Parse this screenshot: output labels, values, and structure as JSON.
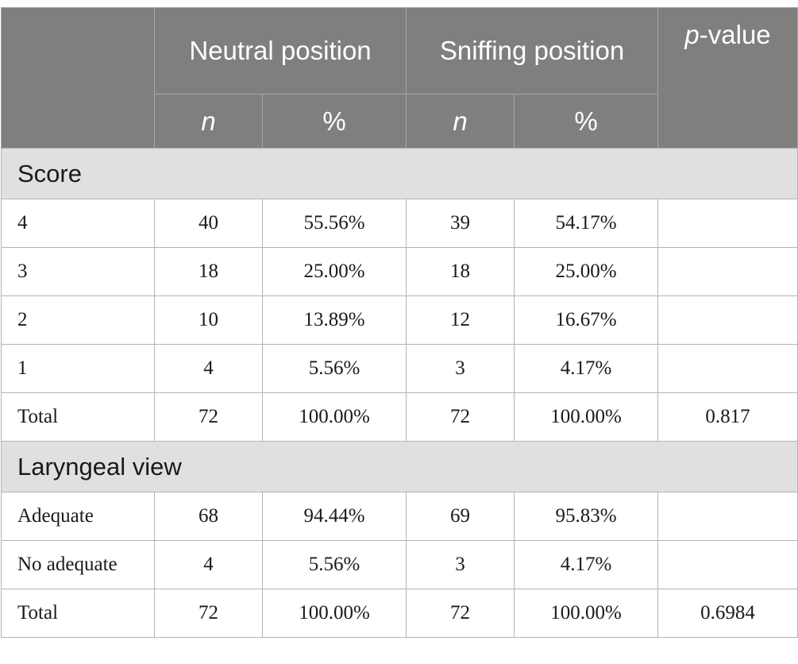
{
  "header": {
    "neutral_label": "Neutral position",
    "sniffing_label": "Sniffing position",
    "p_letter": "p",
    "p_suffix": "-value",
    "n_label": "n",
    "pct_label": "%"
  },
  "sections": [
    {
      "title": "Score",
      "rows": [
        {
          "label": "4",
          "neutral_n": "40",
          "neutral_pct": "55.56%",
          "sniff_n": "39",
          "sniff_pct": "54.17%",
          "p": ""
        },
        {
          "label": "3",
          "neutral_n": "18",
          "neutral_pct": "25.00%",
          "sniff_n": "18",
          "sniff_pct": "25.00%",
          "p": ""
        },
        {
          "label": "2",
          "neutral_n": "10",
          "neutral_pct": "13.89%",
          "sniff_n": "12",
          "sniff_pct": "16.67%",
          "p": ""
        },
        {
          "label": "1",
          "neutral_n": "4",
          "neutral_pct": "5.56%",
          "sniff_n": "3",
          "sniff_pct": "4.17%",
          "p": ""
        },
        {
          "label": "Total",
          "neutral_n": "72",
          "neutral_pct": "100.00%",
          "sniff_n": "72",
          "sniff_pct": "100.00%",
          "p": "0.817"
        }
      ]
    },
    {
      "title": "Laryngeal view",
      "rows": [
        {
          "label": "Adequate",
          "neutral_n": "68",
          "neutral_pct": "94.44%",
          "sniff_n": "69",
          "sniff_pct": "95.83%",
          "p": ""
        },
        {
          "label": "No adequate",
          "neutral_n": "4",
          "neutral_pct": "5.56%",
          "sniff_n": "3",
          "sniff_pct": "4.17%",
          "p": ""
        },
        {
          "label": "Total",
          "neutral_n": "72",
          "neutral_pct": "100.00%",
          "sniff_n": "72",
          "sniff_pct": "100.00%",
          "p": "0.6984"
        }
      ]
    }
  ]
}
